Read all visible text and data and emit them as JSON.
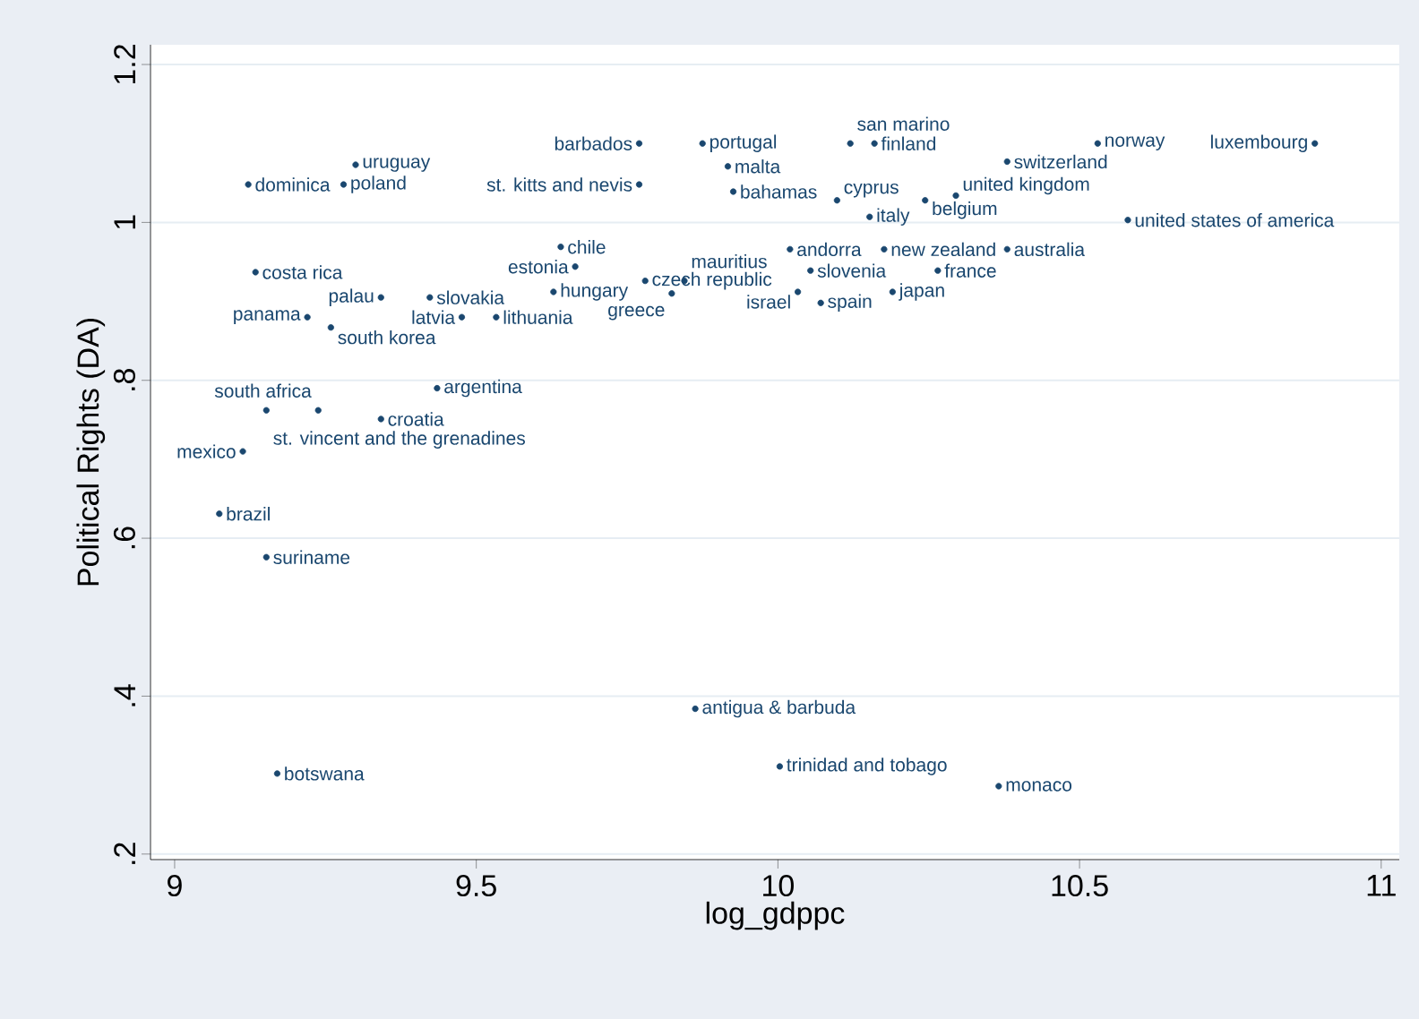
{
  "chart_data": {
    "type": "scatter",
    "xlabel": "log_gdppc",
    "ylabel": "Political Rights (DA)",
    "xlim": [
      8.96,
      11.03
    ],
    "ylim": [
      0.193,
      1.225
    ],
    "xticks": [
      9,
      9.5,
      10,
      10.5,
      11
    ],
    "yticks": [
      {
        "value": 0.2,
        "label": ".2"
      },
      {
        "value": 0.4,
        "label": ".4"
      },
      {
        "value": 0.6,
        "label": ".6"
      },
      {
        "value": 0.8,
        "label": ".8"
      },
      1,
      {
        "value": 1.2,
        "label": "1.2"
      }
    ],
    "grid": "y",
    "marker": "circle",
    "series": [
      {
        "name": "luxembourg",
        "color": "#1a476f",
        "x": [
          10.89
        ],
        "values": [
          1.1
        ]
      },
      {
        "name": "norway",
        "color": "#1a476f",
        "x": [
          10.53
        ],
        "values": [
          1.1
        ]
      },
      {
        "name": "switzerland",
        "color": "#1a476f",
        "x": [
          10.38
        ],
        "values": [
          1.077
        ]
      },
      {
        "name": "san marino",
        "color": "#1a476f",
        "x": [
          10.12
        ],
        "values": [
          1.1
        ]
      },
      {
        "name": "finland",
        "color": "#1a476f",
        "x": [
          10.16
        ],
        "values": [
          1.1
        ]
      },
      {
        "name": "barbados",
        "color": "#1a476f",
        "x": [
          9.77
        ],
        "values": [
          1.1
        ]
      },
      {
        "name": "portugal",
        "color": "#1a476f",
        "x": [
          9.875
        ],
        "values": [
          1.1
        ]
      },
      {
        "name": "malta",
        "color": "#1a476f",
        "x": [
          9.917
        ],
        "values": [
          1.071
        ]
      },
      {
        "name": "st. kitts and nevis",
        "color": "#1a476f",
        "x": [
          9.77
        ],
        "values": [
          1.048
        ]
      },
      {
        "name": "bahamas",
        "color": "#1a476f",
        "x": [
          9.926
        ],
        "values": [
          1.039
        ]
      },
      {
        "name": "cyprus",
        "color": "#1a476f",
        "x": [
          10.098
        ],
        "values": [
          1.028
        ]
      },
      {
        "name": "italy",
        "color": "#1a476f",
        "x": [
          10.152
        ],
        "values": [
          1.007
        ]
      },
      {
        "name": "belgium",
        "color": "#1a476f",
        "x": [
          10.244
        ],
        "values": [
          1.028
        ]
      },
      {
        "name": "united kingdom",
        "color": "#1a476f",
        "x": [
          10.295
        ],
        "values": [
          1.034
        ]
      },
      {
        "name": "united states of america",
        "color": "#1a476f",
        "x": [
          10.58
        ],
        "values": [
          1.003
        ]
      },
      {
        "name": "andorra",
        "color": "#1a476f",
        "x": [
          10.02
        ],
        "values": [
          0.966
        ]
      },
      {
        "name": "new zealand",
        "color": "#1a476f",
        "x": [
          10.176
        ],
        "values": [
          0.966
        ]
      },
      {
        "name": "australia",
        "color": "#1a476f",
        "x": [
          10.38
        ],
        "values": [
          0.966
        ]
      },
      {
        "name": "slovenia",
        "color": "#1a476f",
        "x": [
          10.054
        ],
        "values": [
          0.939
        ]
      },
      {
        "name": "france",
        "color": "#1a476f",
        "x": [
          10.265
        ],
        "values": [
          0.939
        ]
      },
      {
        "name": "israel",
        "color": "#1a476f",
        "x": [
          10.033
        ],
        "values": [
          0.912
        ]
      },
      {
        "name": "spain",
        "color": "#1a476f",
        "x": [
          10.071
        ],
        "values": [
          0.898
        ]
      },
      {
        "name": "japan",
        "color": "#1a476f",
        "x": [
          10.19
        ],
        "values": [
          0.912
        ]
      },
      {
        "name": "mauritius",
        "color": "#1a476f",
        "x": [
          9.845
        ],
        "values": [
          0.926
        ]
      },
      {
        "name": "czech republic",
        "color": "#1a476f",
        "x": [
          9.78
        ],
        "values": [
          0.926
        ]
      },
      {
        "name": "greece",
        "color": "#1a476f",
        "x": [
          9.824
        ],
        "values": [
          0.91
        ]
      },
      {
        "name": "hungary",
        "color": "#1a476f",
        "x": [
          9.628
        ],
        "values": [
          0.912
        ]
      },
      {
        "name": "estonia",
        "color": "#1a476f",
        "x": [
          9.664
        ],
        "values": [
          0.944
        ]
      },
      {
        "name": "chile",
        "color": "#1a476f",
        "x": [
          9.64
        ],
        "values": [
          0.969
        ]
      },
      {
        "name": "latvia",
        "color": "#1a476f",
        "x": [
          9.476
        ],
        "values": [
          0.88
        ]
      },
      {
        "name": "lithuania",
        "color": "#1a476f",
        "x": [
          9.533
        ],
        "values": [
          0.88
        ]
      },
      {
        "name": "palau",
        "color": "#1a476f",
        "x": [
          9.342
        ],
        "values": [
          0.905
        ]
      },
      {
        "name": "slovakia",
        "color": "#1a476f",
        "x": [
          9.423
        ],
        "values": [
          0.905
        ]
      },
      {
        "name": "costa rica",
        "color": "#1a476f",
        "x": [
          9.134
        ],
        "values": [
          0.937
        ]
      },
      {
        "name": "panama",
        "color": "#1a476f",
        "x": [
          9.22
        ],
        "values": [
          0.88
        ]
      },
      {
        "name": "south korea",
        "color": "#1a476f",
        "x": [
          9.259
        ],
        "values": [
          0.867
        ]
      },
      {
        "name": "uruguay",
        "color": "#1a476f",
        "x": [
          9.3
        ],
        "values": [
          1.073
        ]
      },
      {
        "name": "dominica",
        "color": "#1a476f",
        "x": [
          9.122
        ],
        "values": [
          1.048
        ]
      },
      {
        "name": "poland",
        "color": "#1a476f",
        "x": [
          9.28
        ],
        "values": [
          1.048
        ]
      },
      {
        "name": "argentina",
        "color": "#1a476f",
        "x": [
          9.435
        ],
        "values": [
          0.79
        ]
      },
      {
        "name": "st. vincent and the grenadines",
        "color": "#1a476f",
        "x": [
          9.152
        ],
        "values": [
          0.762
        ]
      },
      {
        "name": "south africa",
        "color": "#1a476f",
        "x": [
          9.238
        ],
        "values": [
          0.762
        ]
      },
      {
        "name": "croatia",
        "color": "#1a476f",
        "x": [
          9.342
        ],
        "values": [
          0.751
        ]
      },
      {
        "name": "mexico",
        "color": "#1a476f",
        "x": [
          9.113
        ],
        "values": [
          0.71
        ]
      },
      {
        "name": "brazil",
        "color": "#1a476f",
        "x": [
          9.074
        ],
        "values": [
          0.631
        ]
      },
      {
        "name": "suriname",
        "color": "#1a476f",
        "x": [
          9.152
        ],
        "values": [
          0.576
        ]
      },
      {
        "name": "antigua & barbuda",
        "color": "#1a476f",
        "x": [
          9.863
        ],
        "values": [
          0.384
        ]
      },
      {
        "name": "trinidad and tobago",
        "color": "#1a476f",
        "x": [
          10.003
        ],
        "values": [
          0.311
        ]
      },
      {
        "name": "monaco",
        "color": "#1a476f",
        "x": [
          10.366
        ],
        "values": [
          0.286
        ]
      },
      {
        "name": "botswana",
        "color": "#1a476f",
        "x": [
          9.17
        ],
        "values": [
          0.302
        ]
      }
    ]
  }
}
